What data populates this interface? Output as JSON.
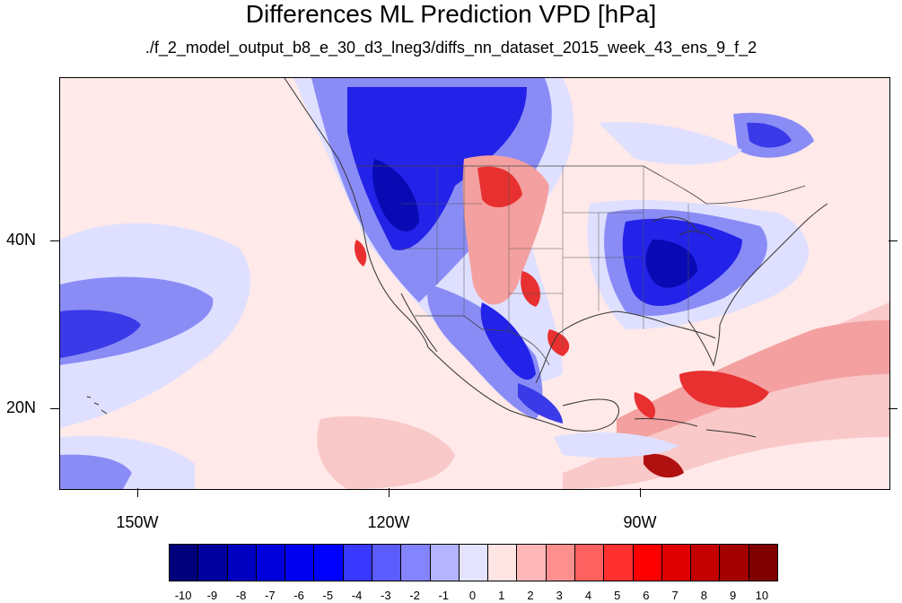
{
  "header": {
    "title": "Differences ML Prediction VPD [hPa]",
    "subtitle": "./f_2_model_output_b8_e_30_d3_lneg3/diffs_nn_dataset_2015_week_43_ens_9_f_2"
  },
  "map": {
    "lon_labels": [
      "150W",
      "120W",
      "90W"
    ],
    "lat_labels": [
      "40N",
      "20N"
    ],
    "colors": {
      "ocean_positive_light": "#ffe9e9",
      "negative_light": "#dfe0ff",
      "negative_mid": "#8a8cf6",
      "negative_strong": "#2222e8",
      "negative_deep": "#0a0ab4",
      "positive_mid": "#f4a0a0",
      "positive_strong": "#e83030",
      "positive_deep": "#b01010"
    }
  },
  "colorbar": {
    "labels": [
      "-10",
      "-9",
      "-8",
      "-7",
      "-6",
      "-5",
      "-4",
      "-3",
      "-2",
      "-1",
      "0",
      "1",
      "2",
      "3",
      "4",
      "5",
      "6",
      "7",
      "8",
      "9",
      "10"
    ],
    "colors": [
      "#00007a",
      "#0000a0",
      "#0000c0",
      "#0000dc",
      "#0000f0",
      "#0000ff",
      "#3838ff",
      "#5c5cff",
      "#8484ff",
      "#b4b4ff",
      "#e4e4ff",
      "#ffe4e4",
      "#ffb8b8",
      "#ff9090",
      "#ff6060",
      "#ff3030",
      "#ff0000",
      "#e00000",
      "#c40000",
      "#a40000",
      "#800000"
    ]
  }
}
